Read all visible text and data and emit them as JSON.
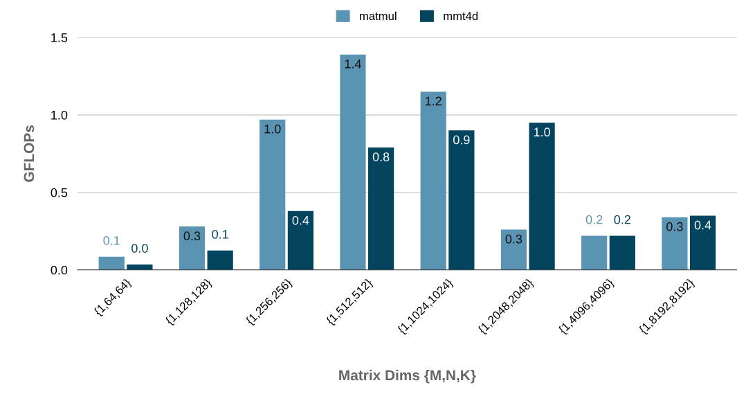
{
  "chart_data": {
    "type": "bar",
    "xlabel": "Matrix Dims {M,N,K}",
    "ylabel": "GFLOPs",
    "categories": [
      "{1,64,64}",
      "{1,128,128}",
      "{1,256,256}",
      "{1,512,512}",
      "{1,1024,1024}",
      "{1,2048,2048}",
      "{1,4096,4096}",
      "{1,8192,8192}"
    ],
    "series": [
      {
        "name": "matmul",
        "color": "#5b93b2",
        "values": [
          0.085,
          0.28,
          0.97,
          1.39,
          1.15,
          0.26,
          0.22,
          0.34
        ],
        "value_labels": [
          "0.1",
          "0.3",
          "1.0",
          "1.4",
          "1.2",
          "0.3",
          "0.2",
          "0.3"
        ]
      },
      {
        "name": "mmt4d",
        "color": "#03445f",
        "values": [
          0.035,
          0.125,
          0.38,
          0.79,
          0.9,
          0.95,
          0.22,
          0.35
        ],
        "value_labels": [
          "0.0",
          "0.1",
          "0.4",
          "0.8",
          "0.9",
          "1.0",
          "0.2",
          "0.4"
        ]
      }
    ],
    "ylim": [
      0,
      1.5
    ],
    "yticks": [
      {
        "value": 0,
        "label": "0.0"
      },
      0.5,
      {
        "value": 1,
        "label": "1.0"
      },
      1.5
    ],
    "grid": "y",
    "legend": "top"
  }
}
